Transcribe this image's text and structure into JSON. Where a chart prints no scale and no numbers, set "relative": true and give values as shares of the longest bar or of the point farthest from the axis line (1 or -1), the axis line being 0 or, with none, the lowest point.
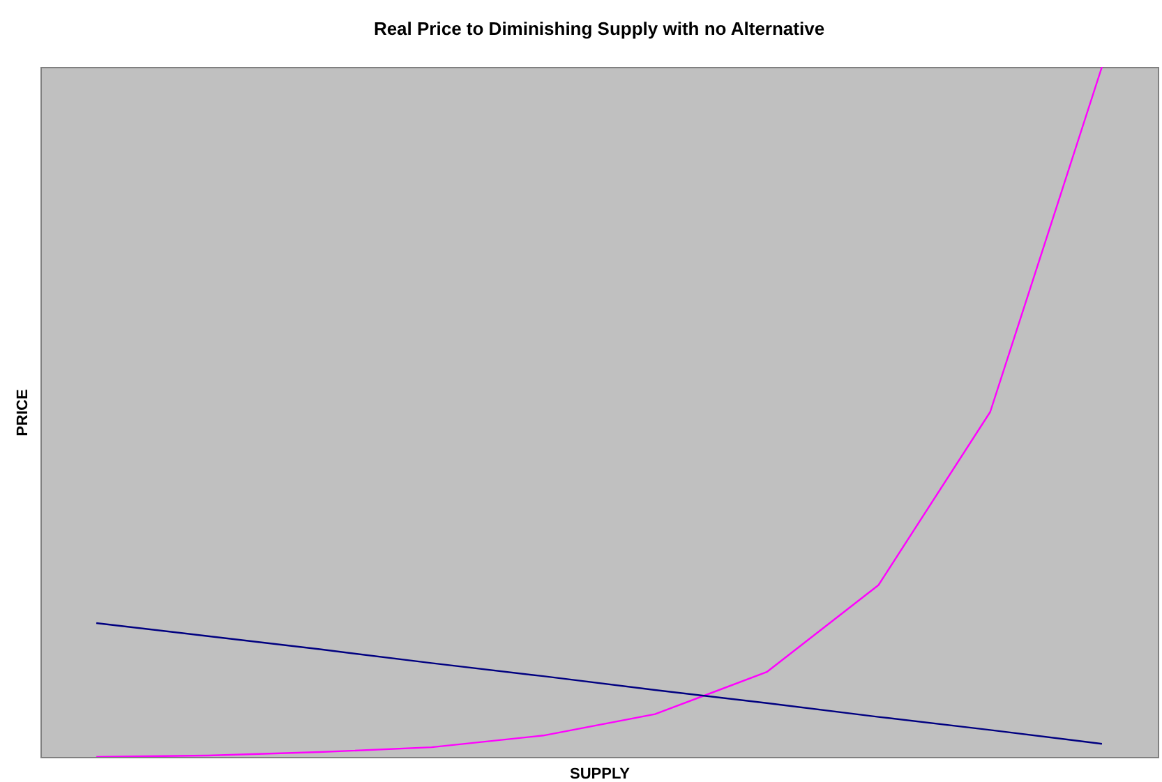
{
  "chart_data": {
    "type": "line",
    "title": "Real Price to Diminishing Supply with no Alternative",
    "xlabel": "SUPPLY",
    "ylabel": "PRICE",
    "relative": true,
    "tick_labels": false,
    "grid": false,
    "categories": [
      null,
      null,
      null,
      null,
      null,
      null,
      null,
      null,
      null,
      null
    ],
    "series": [
      {
        "color": "#ff00ff",
        "values": [
          0,
          0.002,
          0.007,
          0.014,
          0.031,
          0.062,
          0.123,
          0.249,
          0.5,
          1
        ]
      },
      {
        "color": "#000080",
        "values": [
          0.194,
          0.175,
          0.156,
          0.136,
          0.117,
          0.097,
          0.078,
          0.058,
          0.039,
          0.019
        ]
      }
    ]
  }
}
